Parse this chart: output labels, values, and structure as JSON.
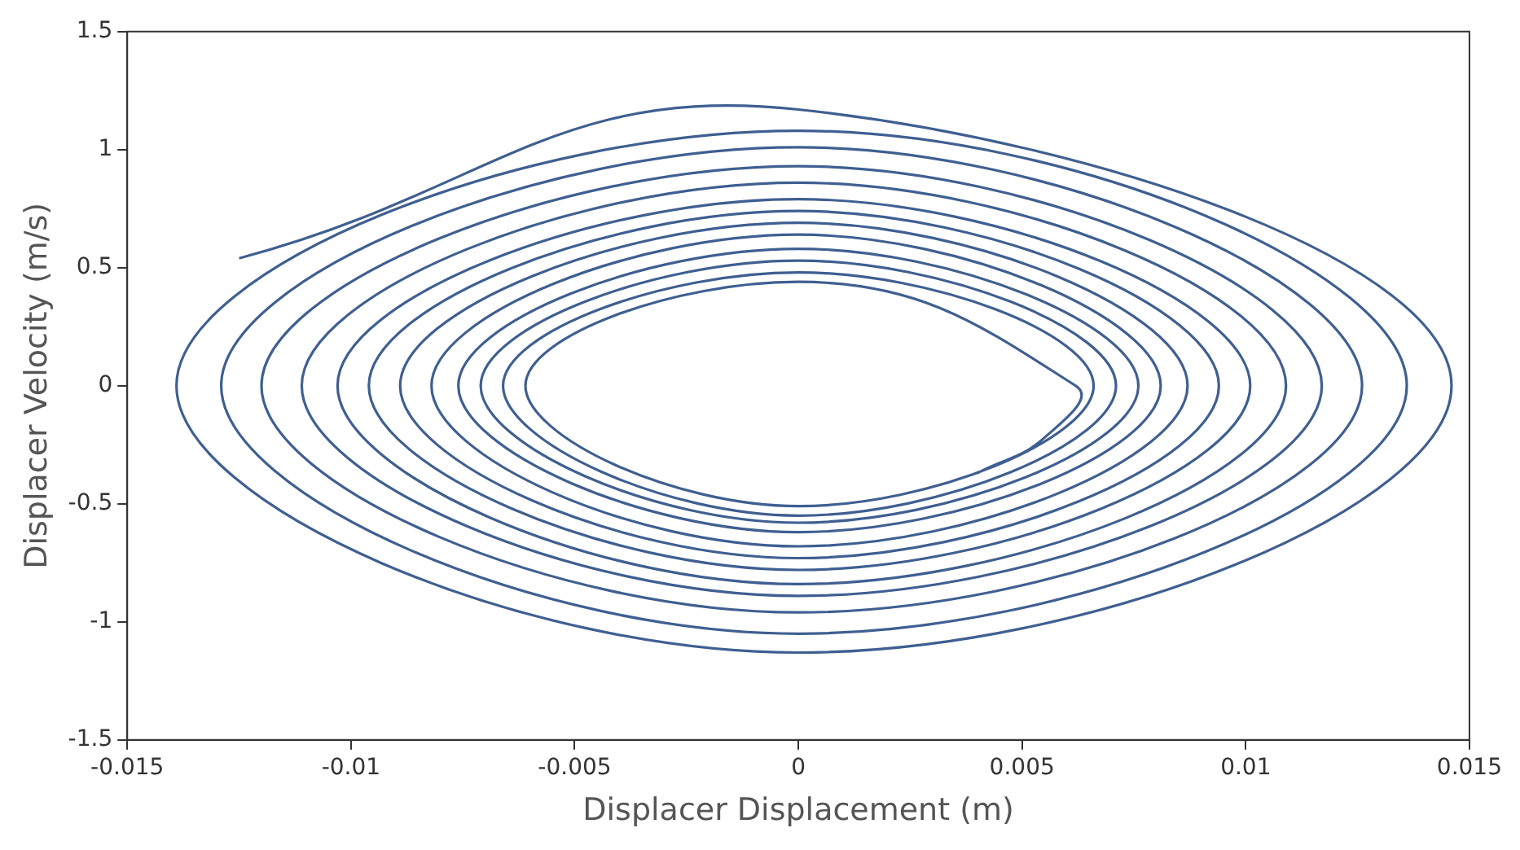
{
  "chart_data": {
    "type": "line",
    "xlabel": "Displacer Displacement (m)",
    "ylabel": "Displacer Velocity (m/s)",
    "xlim": [
      -0.015,
      0.015
    ],
    "xticks": [
      -0.015,
      -0.01,
      -0.005,
      0,
      0.005,
      0.01,
      0.015
    ],
    "ylim": [
      -1.5,
      1.5
    ],
    "yticks": [
      -1.5,
      -1,
      -0.5,
      0,
      0.5,
      1,
      1.5
    ],
    "legend": false,
    "marker": "none",
    "line_style": "solid",
    "series": [
      {
        "color": "#3f5f91",
        "x": [
          -0.0125,
          0,
          0.0146,
          0,
          -0.0139,
          0,
          0.0136,
          0,
          -0.0129,
          0,
          0.0126,
          0,
          -0.012,
          0,
          0.0117,
          0,
          -0.0111,
          0,
          0.0109,
          0,
          -0.0103,
          0,
          0.0101,
          0,
          -0.0096,
          0,
          0.0094,
          0,
          -0.0089,
          0,
          0.0087,
          0,
          -0.0082,
          0,
          0.0081,
          0,
          -0.0076,
          0,
          0.0076,
          0,
          -0.0071,
          0,
          0.0071,
          0,
          -0.0066,
          0,
          0.0066,
          0,
          -0.0061,
          0,
          0.0062,
          0.0055,
          0.004
        ],
        "values": [
          0.54,
          1.17,
          0,
          -1.13,
          0,
          1.08,
          0,
          -1.05,
          0,
          1.01,
          0,
          -0.96,
          0,
          0.93,
          0,
          -0.89,
          0,
          0.86,
          0,
          -0.84,
          0,
          0.79,
          0,
          -0.78,
          0,
          0.74,
          0,
          -0.73,
          0,
          0.69,
          0,
          -0.68,
          0,
          0.64,
          0,
          -0.62,
          0,
          0.58,
          0,
          -0.58,
          0,
          0.53,
          0,
          -0.55,
          0,
          0.48,
          0,
          -0.51,
          0,
          0.44,
          0,
          -0.22,
          -0.37
        ]
      }
    ]
  }
}
